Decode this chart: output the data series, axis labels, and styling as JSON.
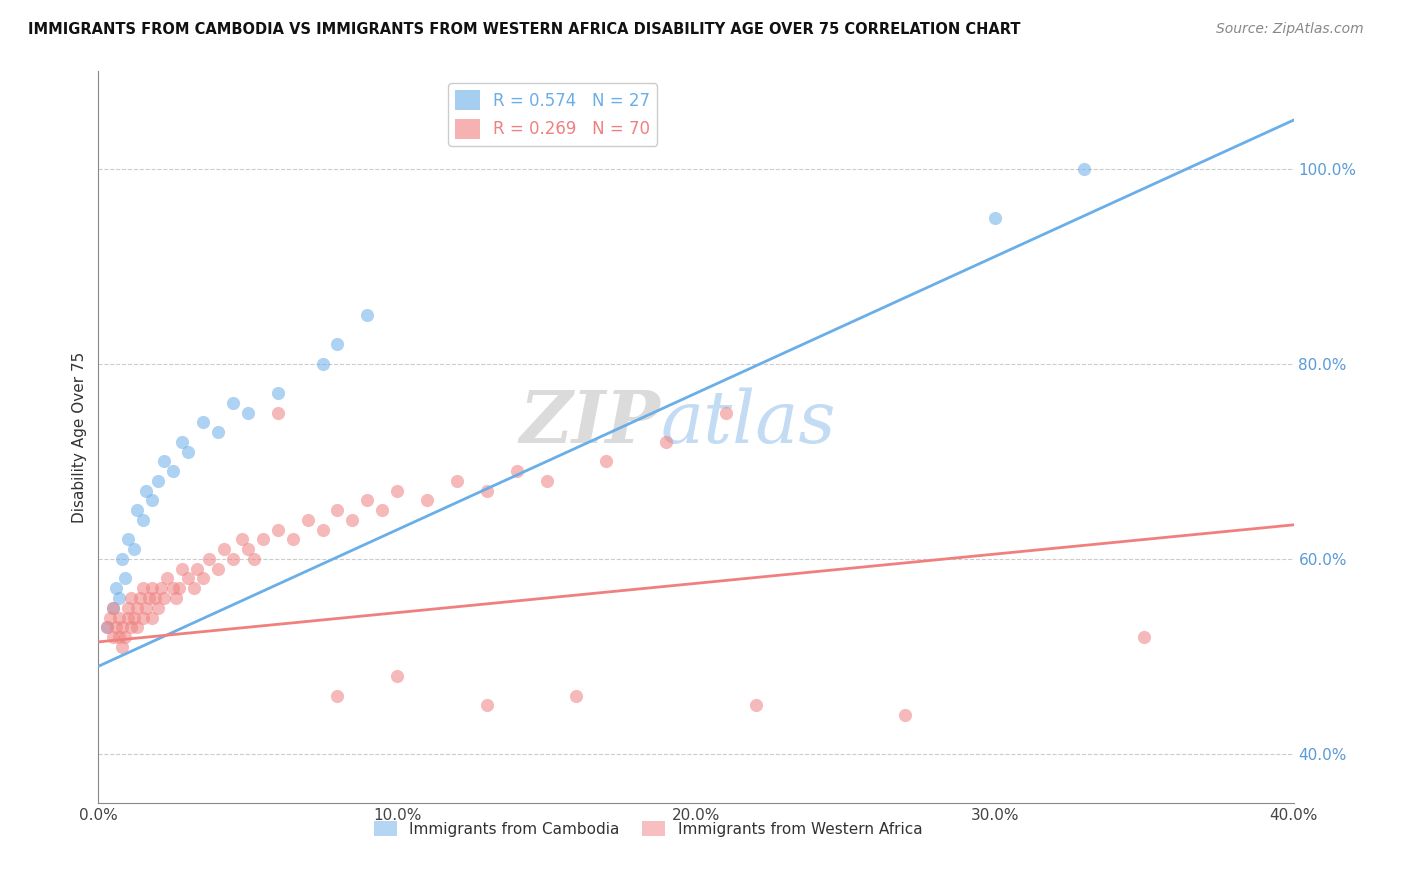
{
  "title": "IMMIGRANTS FROM CAMBODIA VS IMMIGRANTS FROM WESTERN AFRICA DISABILITY AGE OVER 75 CORRELATION CHART",
  "source": "Source: ZipAtlas.com",
  "ylabel": "Disability Age Over 75",
  "xlim": [
    0.0,
    0.4
  ],
  "ylim": [
    0.35,
    1.1
  ],
  "xticks": [
    0.0,
    0.1,
    0.2,
    0.3,
    0.4
  ],
  "xticklabels": [
    "0.0%",
    "10.0%",
    "20.0%",
    "30.0%",
    "40.0%"
  ],
  "yticks_right": [
    0.4,
    0.6,
    0.8,
    1.0
  ],
  "yticklabels_right": [
    "40.0%",
    "60.0%",
    "80.0%",
    "100.0%"
  ],
  "yticks_grid": [
    0.4,
    0.6,
    0.8,
    1.0
  ],
  "legend_blue_label": "R = 0.574   N = 27",
  "legend_pink_label": "R = 0.269   N = 70",
  "legend_blue_series": "Immigrants from Cambodia",
  "legend_pink_series": "Immigrants from Western Africa",
  "blue_color": "#6aaee8",
  "pink_color": "#f08080",
  "blue_line_x": [
    0.0,
    0.4
  ],
  "blue_line_y": [
    0.49,
    1.05
  ],
  "pink_line_x": [
    0.0,
    0.4
  ],
  "pink_line_y": [
    0.515,
    0.635
  ],
  "blue_scatter_x": [
    0.003,
    0.005,
    0.006,
    0.007,
    0.008,
    0.009,
    0.01,
    0.012,
    0.013,
    0.015,
    0.016,
    0.018,
    0.02,
    0.022,
    0.025,
    0.028,
    0.03,
    0.035,
    0.04,
    0.045,
    0.05,
    0.06,
    0.075,
    0.08,
    0.09,
    0.3,
    0.33
  ],
  "blue_scatter_y": [
    0.53,
    0.55,
    0.57,
    0.56,
    0.6,
    0.58,
    0.62,
    0.61,
    0.65,
    0.64,
    0.67,
    0.66,
    0.68,
    0.7,
    0.69,
    0.72,
    0.71,
    0.74,
    0.73,
    0.76,
    0.75,
    0.77,
    0.8,
    0.82,
    0.85,
    0.95,
    1.0
  ],
  "pink_scatter_x": [
    0.003,
    0.004,
    0.005,
    0.005,
    0.006,
    0.007,
    0.007,
    0.008,
    0.008,
    0.009,
    0.01,
    0.01,
    0.011,
    0.011,
    0.012,
    0.013,
    0.013,
    0.014,
    0.015,
    0.015,
    0.016,
    0.017,
    0.018,
    0.018,
    0.019,
    0.02,
    0.021,
    0.022,
    0.023,
    0.025,
    0.026,
    0.027,
    0.028,
    0.03,
    0.032,
    0.033,
    0.035,
    0.037,
    0.04,
    0.042,
    0.045,
    0.048,
    0.05,
    0.052,
    0.055,
    0.06,
    0.065,
    0.07,
    0.075,
    0.08,
    0.085,
    0.09,
    0.095,
    0.1,
    0.11,
    0.12,
    0.13,
    0.14,
    0.15,
    0.17,
    0.19,
    0.21,
    0.13,
    0.16,
    0.22,
    0.27,
    0.35,
    0.1,
    0.08,
    0.06
  ],
  "pink_scatter_y": [
    0.53,
    0.54,
    0.52,
    0.55,
    0.53,
    0.52,
    0.54,
    0.51,
    0.53,
    0.52,
    0.54,
    0.55,
    0.53,
    0.56,
    0.54,
    0.53,
    0.55,
    0.56,
    0.54,
    0.57,
    0.55,
    0.56,
    0.54,
    0.57,
    0.56,
    0.55,
    0.57,
    0.56,
    0.58,
    0.57,
    0.56,
    0.57,
    0.59,
    0.58,
    0.57,
    0.59,
    0.58,
    0.6,
    0.59,
    0.61,
    0.6,
    0.62,
    0.61,
    0.6,
    0.62,
    0.63,
    0.62,
    0.64,
    0.63,
    0.65,
    0.64,
    0.66,
    0.65,
    0.67,
    0.66,
    0.68,
    0.67,
    0.69,
    0.68,
    0.7,
    0.72,
    0.75,
    0.45,
    0.46,
    0.45,
    0.44,
    0.52,
    0.48,
    0.46,
    0.75
  ],
  "watermark_zip_color": "#cccccc",
  "watermark_atlas_color": "#aaccee"
}
